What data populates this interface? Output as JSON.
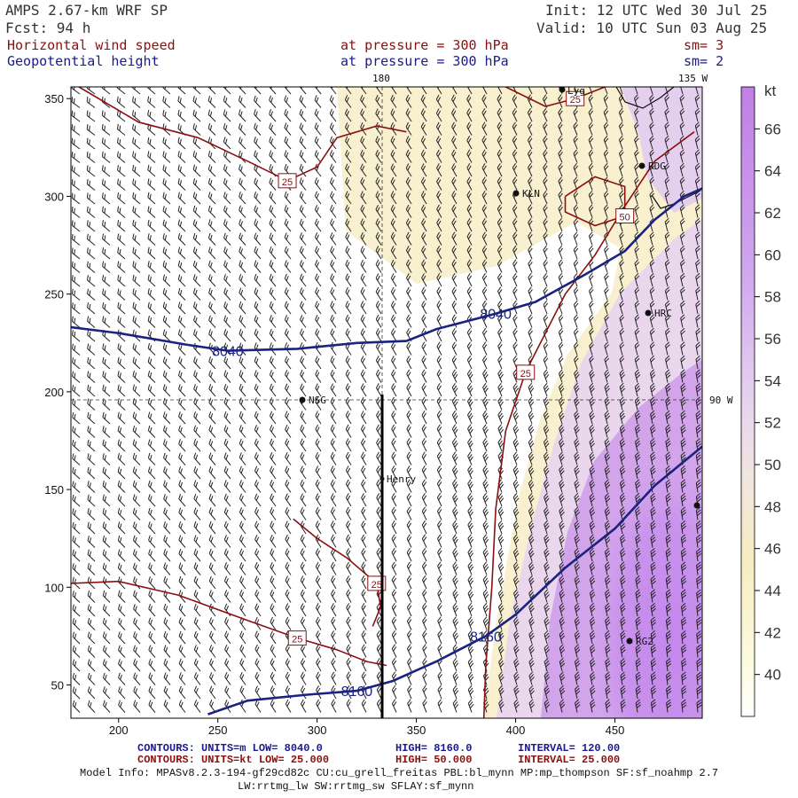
{
  "header": {
    "title": "AMPS 2.67-km WRF SP",
    "fcst": "Fcst:   94 h",
    "init": "Init: 12 UTC Wed 30 Jul 25",
    "valid": "Valid: 10 UTC Sun 03 Aug 25",
    "field1": "Horizontal wind speed",
    "field2": "Geopotential height",
    "level1": "at pressure =  300 hPa",
    "level2": "at pressure =  300 hPa",
    "sm1": "sm= 3",
    "sm2": "sm= 2"
  },
  "map": {
    "lon_labels": [
      "180",
      "135 W",
      "90 W"
    ],
    "stations": [
      "Lyg",
      "RDG",
      "KLN",
      "HRC",
      "NSG",
      "Henry",
      "RG2"
    ]
  },
  "colorbar": {
    "unit": "kt",
    "ticks": [
      "66",
      "64",
      "62",
      "60",
      "58",
      "56",
      "54",
      "52",
      "50",
      "48",
      "46",
      "44",
      "42",
      "40"
    ]
  },
  "footer": {
    "c1_label": "CONTOURS:",
    "c1_units": "UNITS=m",
    "c1_low": "LOW=  8040.0",
    "c1_high": "HIGH=  8160.0",
    "c1_interval": "INTERVAL=    120.00",
    "c2_label": "CONTOURS:",
    "c2_units": "UNITS=kt",
    "c2_low": "LOW=  25.000",
    "c2_high": "HIGH=  50.000",
    "c2_interval": "INTERVAL=    25.000",
    "model_info": "Model Info: MPASv8.2.3-194-gf29cd82c CU:cu_grell_freitas PBL:bl_mynn MP:mp_thompson SF:sf_noahmp 2.7",
    "model_info2": "LW:rrtmg_lw SW:rrtmg_sw SFLAY:sf_mynn"
  },
  "chart_data": {
    "type": "map",
    "x_ticks": [
      "200",
      "250",
      "300",
      "350",
      "400",
      "450"
    ],
    "y_ticks": [
      "350",
      "300",
      "250",
      "200",
      "150",
      "100",
      "50"
    ],
    "xlim": [
      176,
      494
    ],
    "ylim": [
      33,
      356
    ],
    "height_contours_m": [
      {
        "label": "8040",
        "points": [
          [
            176,
            233
          ],
          [
            200,
            230
          ],
          [
            235,
            224
          ],
          [
            255,
            221
          ],
          [
            290,
            222
          ],
          [
            320,
            225
          ],
          [
            345,
            226
          ],
          [
            360,
            232
          ],
          [
            390,
            240
          ],
          [
            410,
            246
          ],
          [
            435,
            260
          ],
          [
            455,
            272
          ],
          [
            470,
            288
          ],
          [
            485,
            300
          ],
          [
            494,
            304
          ]
        ]
      },
      {
        "label": "8160",
        "points": [
          [
            245,
            35
          ],
          [
            265,
            42
          ],
          [
            295,
            45
          ],
          [
            320,
            47
          ],
          [
            338,
            52
          ],
          [
            360,
            62
          ],
          [
            385,
            75
          ],
          [
            400,
            86
          ],
          [
            425,
            110
          ],
          [
            450,
            130
          ],
          [
            470,
            152
          ],
          [
            494,
            172
          ]
        ]
      }
    ],
    "speed_contours_kt": [
      {
        "label": "25",
        "points": [
          [
            490,
            333
          ],
          [
            470,
            318
          ],
          [
            455,
            295
          ],
          [
            440,
            270
          ],
          [
            425,
            250
          ],
          [
            405,
            210
          ],
          [
            395,
            180
          ],
          [
            390,
            140
          ],
          [
            388,
            100
          ],
          [
            385,
            60
          ],
          [
            384,
            33
          ]
        ]
      },
      {
        "label": "25",
        "points": [
          [
            176,
            102
          ],
          [
            200,
            103
          ],
          [
            230,
            96
          ],
          [
            265,
            83
          ],
          [
            290,
            74
          ],
          [
            310,
            68
          ],
          [
            325,
            62
          ],
          [
            335,
            60
          ]
        ]
      },
      {
        "label": "25",
        "points": [
          [
            288,
            135
          ],
          [
            300,
            125
          ],
          [
            315,
            115
          ],
          [
            330,
            102
          ],
          [
            332,
            90
          ],
          [
            328,
            80
          ]
        ]
      },
      {
        "label": "25",
        "points": [
          [
            180,
            356
          ],
          [
            210,
            338
          ],
          [
            240,
            330
          ],
          [
            265,
            318
          ],
          [
            285,
            308
          ],
          [
            300,
            315
          ],
          [
            310,
            330
          ],
          [
            330,
            336
          ],
          [
            345,
            333
          ]
        ]
      },
      {
        "label": "25",
        "points": [
          [
            395,
            356
          ],
          [
            415,
            346
          ],
          [
            430,
            350
          ],
          [
            445,
            356
          ]
        ]
      },
      {
        "label": "50",
        "points": [
          [
            425,
            300
          ],
          [
            440,
            310
          ],
          [
            455,
            305
          ],
          [
            455,
            290
          ],
          [
            440,
            285
          ],
          [
            425,
            292
          ],
          [
            425,
            300
          ]
        ]
      }
    ],
    "speed_shading_kt": {
      "min": 40,
      "max": 67,
      "max_region": "southeast"
    },
    "cross_section_x": 338
  }
}
